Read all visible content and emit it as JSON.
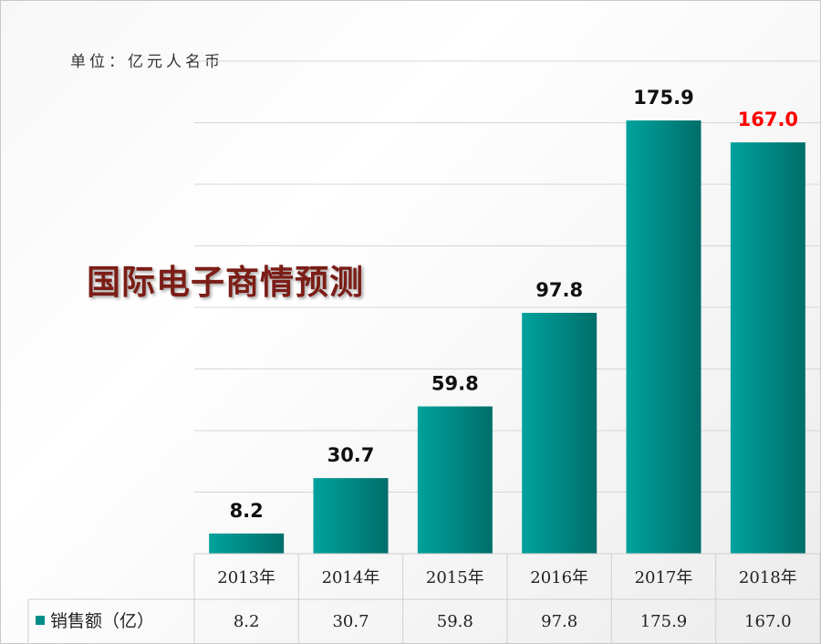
{
  "unit_label": "单位：亿元人名币",
  "chart_data": {
    "type": "bar",
    "title": "国际电子商情预测",
    "categories": [
      "2013年",
      "2014年",
      "2015年",
      "2016年",
      "2017年",
      "2018年"
    ],
    "series": [
      {
        "name": "销售额（亿）",
        "values": [
          8.2,
          30.7,
          59.8,
          97.8,
          175.9,
          167.0
        ],
        "value_labels": [
          "8.2",
          "30.7",
          "59.8",
          "97.8",
          "175.9",
          "167.0"
        ]
      }
    ],
    "ylim": [
      0,
      200
    ],
    "grid": true,
    "data_table": true,
    "bar_color": "#008c87",
    "highlight_label_color": "#ff0000",
    "highlight_index": 5
  }
}
